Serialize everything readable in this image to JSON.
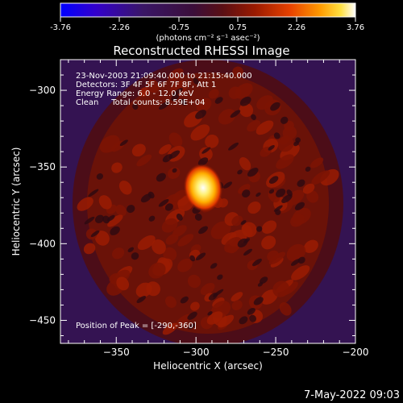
{
  "colorbar": {
    "ticks": [
      "-3.76",
      "-2.26",
      "-0.75",
      "0.75",
      "2.26",
      "3.76"
    ],
    "unit_label": "(photons cm⁻² s⁻¹ asec⁻²)",
    "min": -3.76,
    "max": 3.76,
    "colors": [
      "#0000ff",
      "#3300cc",
      "#3a1666",
      "#3b0e3a",
      "#5a0f14",
      "#9a1a00",
      "#e84200",
      "#ff9a00",
      "#ffe040",
      "#ffffff"
    ]
  },
  "title": "Reconstructed RHESSI Image",
  "annotations": {
    "line1": "23-Nov-2003 21:09:40.000 to 21:15:40.000",
    "line2": "Detectors: 3F 4F 5F 6F 7F 8F, Att 1",
    "line3": "Energy Range: 6.0 - 12.0 keV",
    "line4": "Clean     Total counts: 8.59E+04",
    "peak": "Position of Peak = [-290,-360]"
  },
  "footer_date": "7-May-2022 09:03",
  "chart_data": {
    "type": "heatmap",
    "title": "Reconstructed RHESSI Image",
    "xlabel": "Heliocentric X (arcsec)",
    "ylabel": "Heliocentric Y (arcsec)",
    "xlim": [
      -385,
      -200
    ],
    "ylim": [
      -465,
      -280
    ],
    "x_ticks": [
      -350,
      -300,
      -250,
      -200
    ],
    "y_ticks": [
      -300,
      -350,
      -400,
      -450
    ],
    "x_tick_labels": [
      "−350",
      "−300",
      "−250",
      "−200"
    ],
    "y_tick_labels": [
      "−300",
      "−350",
      "−400",
      "−450"
    ],
    "peak_position": [
      -290,
      -360
    ],
    "colorbar_range": [
      -3.76,
      3.76
    ]
  }
}
